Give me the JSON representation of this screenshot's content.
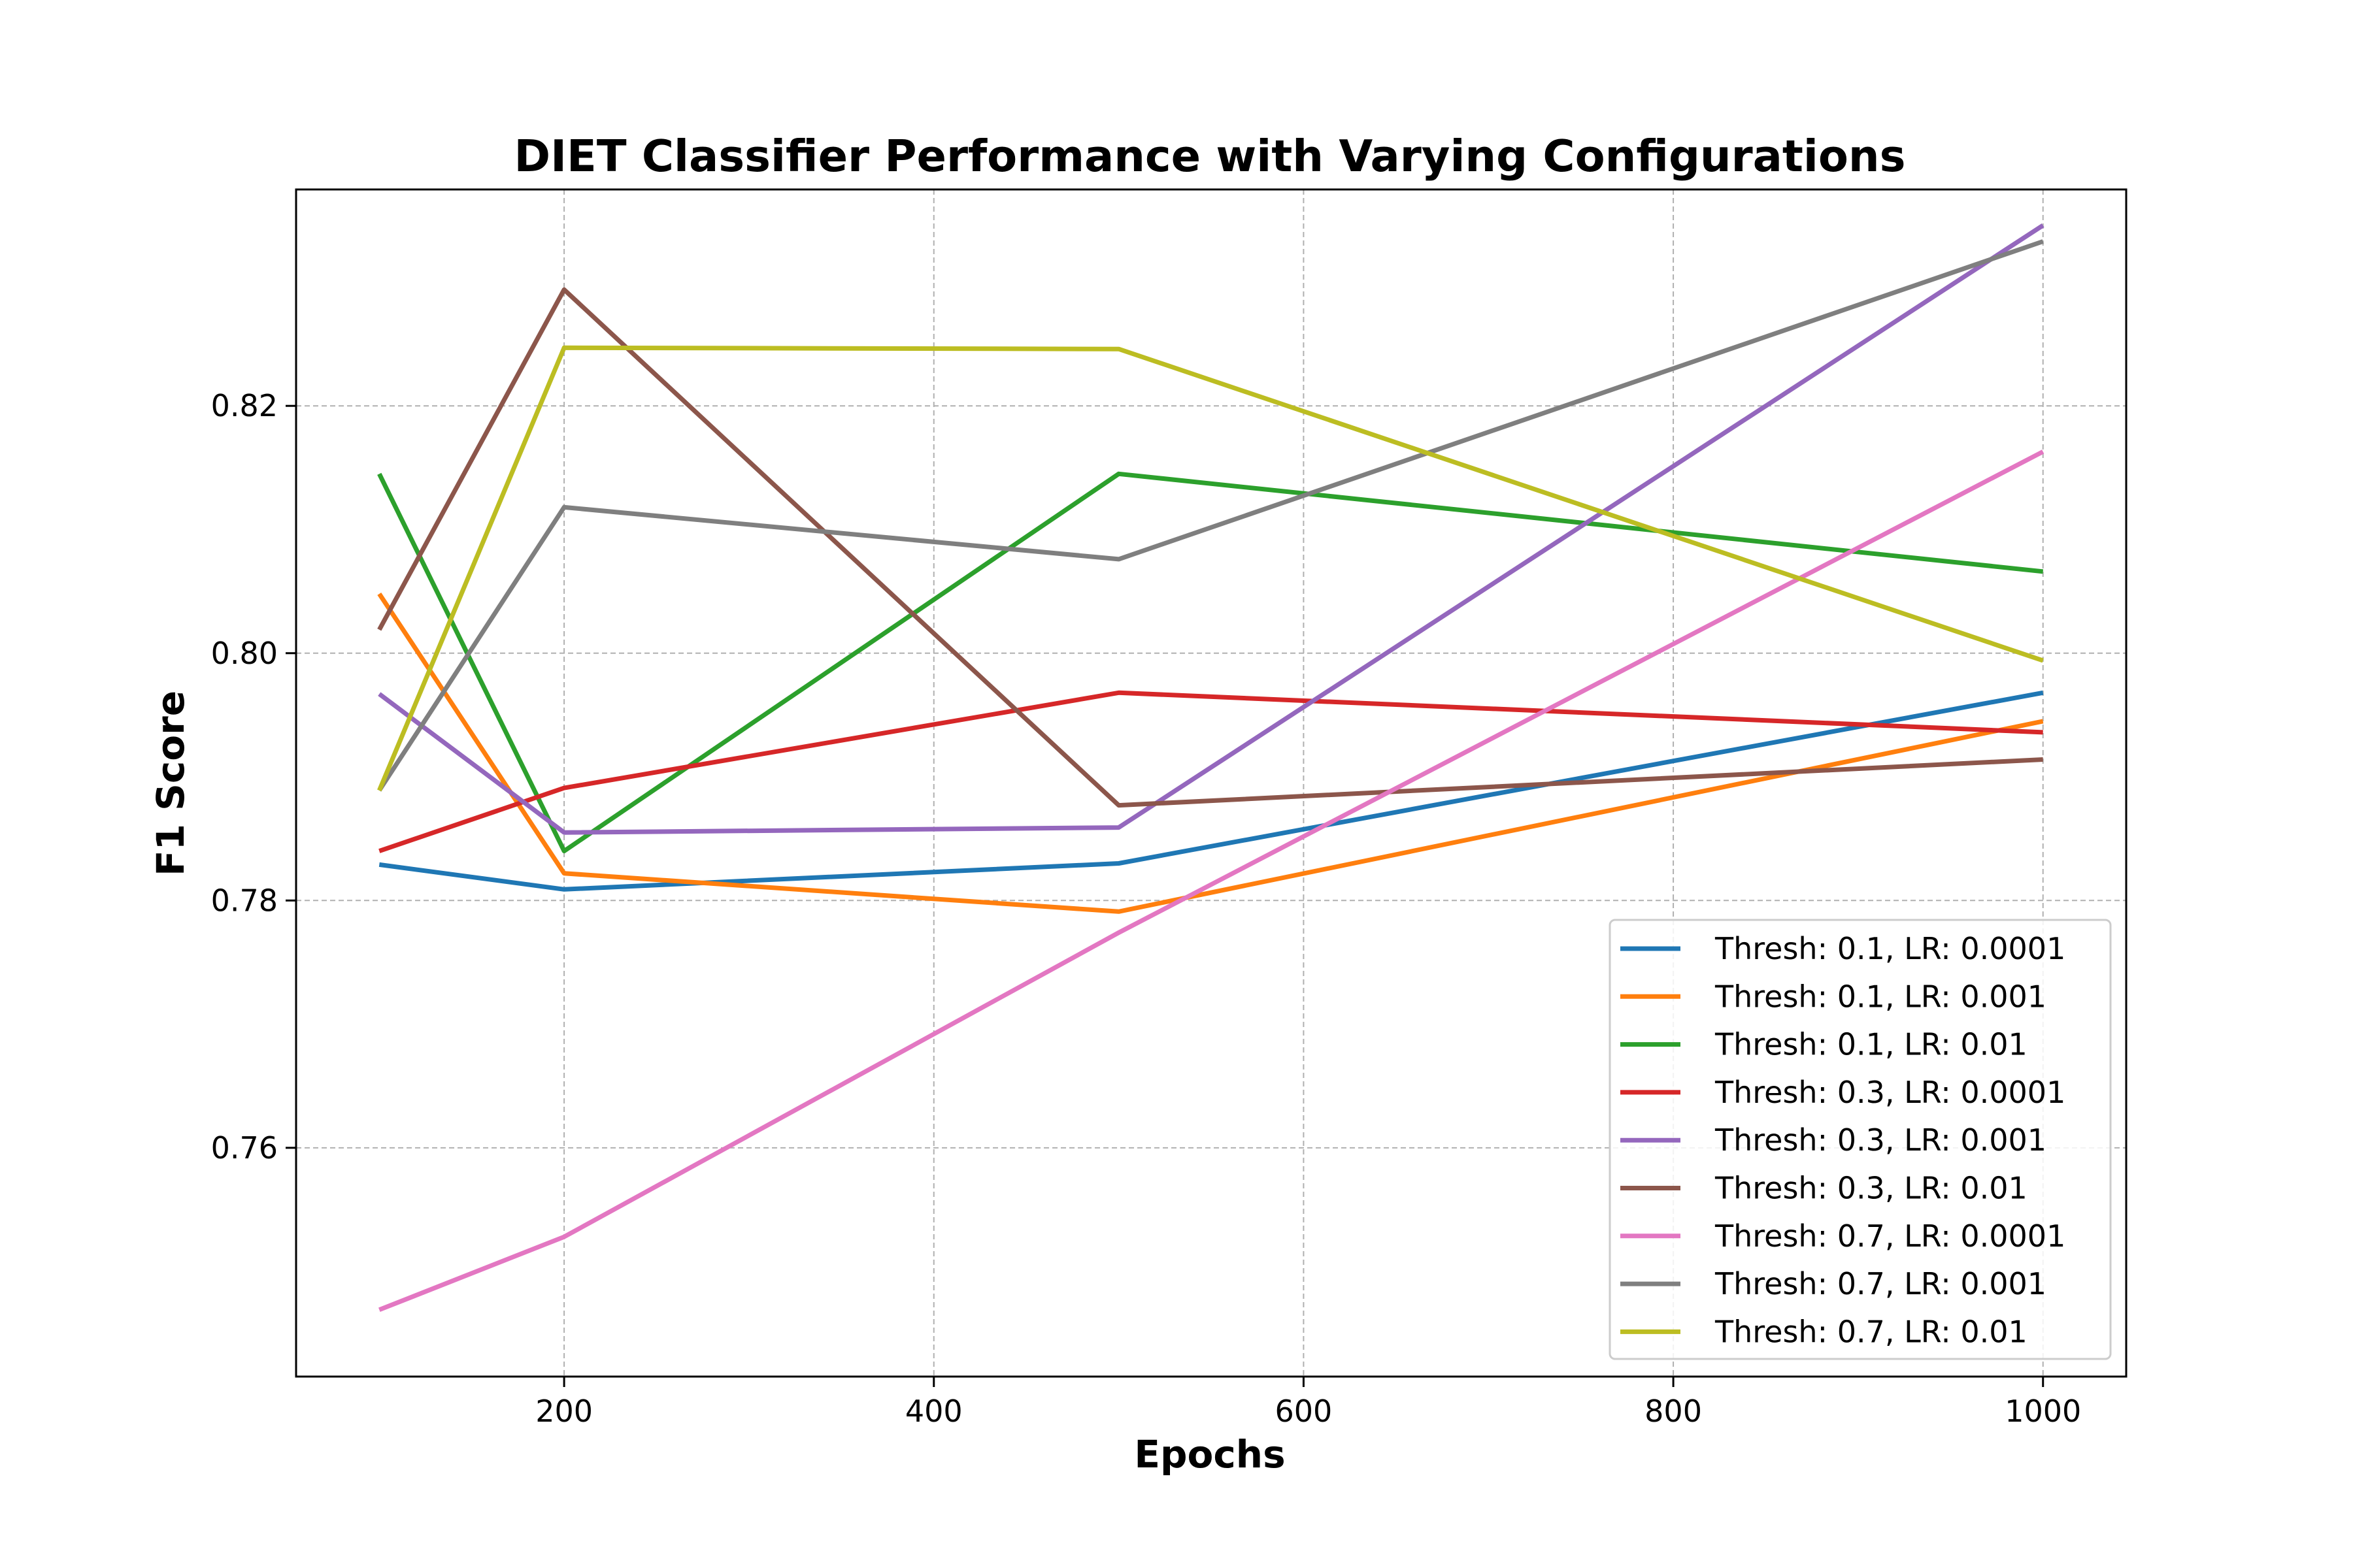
{
  "chart_data": {
    "type": "line",
    "title": "DIET Classifier Performance with Varying Configurations",
    "xlabel": "Epochs",
    "ylabel": "F1 Score",
    "x": [
      100,
      200,
      500,
      1000
    ],
    "xlim": [
      55,
      1045
    ],
    "ylim": [
      0.7415,
      0.8375
    ],
    "xticks": [
      200,
      400,
      600,
      800,
      1000
    ],
    "yticks": [
      0.76,
      0.78,
      0.8,
      0.82
    ],
    "xtick_labels": [
      "200",
      "400",
      "600",
      "800",
      "1000"
    ],
    "ytick_labels": [
      "0.76",
      "0.78",
      "0.80",
      "0.82"
    ],
    "grid": true,
    "legend_position": "lower-right",
    "series": [
      {
        "name": "Thresh: 0.1, LR: 0.0001",
        "color": "#1f77b4",
        "values": [
          0.7829,
          0.7809,
          0.783,
          0.7968
        ]
      },
      {
        "name": "Thresh: 0.1, LR: 0.001",
        "color": "#ff7f0e",
        "values": [
          0.8048,
          0.7822,
          0.7791,
          0.7945
        ]
      },
      {
        "name": "Thresh: 0.1, LR: 0.01",
        "color": "#2ca02c",
        "values": [
          0.8145,
          0.784,
          0.8145,
          0.8066
        ]
      },
      {
        "name": "Thresh: 0.3, LR: 0.0001",
        "color": "#d62728",
        "values": [
          0.784,
          0.7891,
          0.7968,
          0.7936
        ]
      },
      {
        "name": "Thresh: 0.3, LR: 0.001",
        "color": "#9467bd",
        "values": [
          0.7967,
          0.7855,
          0.7859,
          0.8346
        ]
      },
      {
        "name": "Thresh: 0.3, LR: 0.01",
        "color": "#8c564b",
        "values": [
          0.8019,
          0.8294,
          0.7877,
          0.7914
        ]
      },
      {
        "name": "Thresh: 0.7, LR: 0.0001",
        "color": "#e377c2",
        "values": [
          0.7469,
          0.7528,
          0.7774,
          0.8163
        ]
      },
      {
        "name": "Thresh: 0.7, LR: 0.001",
        "color": "#7f7f7f",
        "values": [
          0.7889,
          0.8118,
          0.8076,
          0.8333
        ]
      },
      {
        "name": "Thresh: 0.7, LR: 0.01",
        "color": "#bcbd22",
        "values": [
          0.7889,
          0.8247,
          0.8246,
          0.7994
        ]
      }
    ]
  }
}
